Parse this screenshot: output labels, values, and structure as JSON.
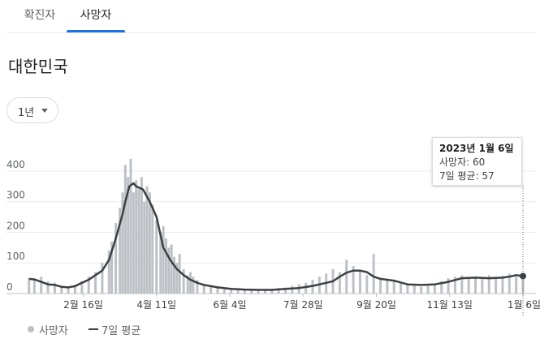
{
  "tabs": [
    {
      "label": "확진자",
      "selected": false
    },
    {
      "label": "사망자",
      "selected": true
    }
  ],
  "region": "대한민국",
  "period_select": {
    "label": "1년"
  },
  "tooltip": {
    "title": "2023년 1월 6일",
    "deaths": "사망자: 60",
    "avg": "7일 평균: 57"
  },
  "legend": {
    "bar_label": "사망자",
    "line_label": "7일 평균"
  },
  "colors": {
    "accent": "#1a73e8",
    "bars": "#bdc1c6",
    "line": "#3c4043"
  },
  "chart_data": {
    "type": "bar",
    "title": "",
    "xlabel": "",
    "ylabel": "",
    "ylim": [
      0,
      450
    ],
    "y_ticks": [
      "0",
      "100",
      "200",
      "300",
      "400"
    ],
    "x_ticks": [
      "2월 16일",
      "4월 11일",
      "6월 4일",
      "7월 28일",
      "9월 20일",
      "11월 13일",
      "1월 6일"
    ],
    "x_tick_days": [
      41,
      95,
      149,
      203,
      257,
      311,
      365
    ],
    "grid": true,
    "series": [
      {
        "name": "사망자",
        "type": "bar",
        "x_days": [
          1,
          5,
          10,
          15,
          20,
          25,
          30,
          35,
          40,
          45,
          50,
          55,
          60,
          62,
          65,
          68,
          70,
          72,
          74,
          76,
          78,
          80,
          82,
          84,
          86,
          88,
          90,
          92,
          95,
          98,
          100,
          102,
          104,
          106,
          108,
          110,
          112,
          115,
          118,
          120,
          122,
          125,
          130,
          135,
          140,
          145,
          150,
          155,
          160,
          165,
          170,
          175,
          180,
          185,
          190,
          195,
          200,
          205,
          210,
          215,
          220,
          225,
          230,
          235,
          240,
          245,
          250,
          255,
          260,
          265,
          270,
          275,
          280,
          285,
          290,
          295,
          300,
          305,
          310,
          315,
          320,
          325,
          330,
          335,
          340,
          345,
          350,
          355,
          360,
          365
        ],
        "values": [
          50,
          45,
          55,
          40,
          35,
          25,
          22,
          28,
          40,
          55,
          70,
          100,
          140,
          170,
          230,
          280,
          330,
          420,
          380,
          440,
          330,
          370,
          340,
          380,
          300,
          350,
          330,
          290,
          240,
          200,
          220,
          180,
          150,
          160,
          120,
          100,
          130,
          80,
          60,
          70,
          55,
          45,
          30,
          25,
          22,
          18,
          15,
          14,
          12,
          12,
          10,
          12,
          15,
          18,
          20,
          25,
          30,
          35,
          45,
          55,
          65,
          80,
          70,
          110,
          90,
          75,
          60,
          130,
          50,
          45,
          40,
          35,
          30,
          25,
          22,
          25,
          30,
          40,
          50,
          55,
          60,
          50,
          55,
          48,
          60,
          55,
          58,
          65,
          55,
          60
        ]
      },
      {
        "name": "7일 평균",
        "type": "line",
        "x_days": [
          1,
          5,
          10,
          15,
          20,
          25,
          30,
          35,
          40,
          45,
          50,
          55,
          60,
          65,
          70,
          72,
          75,
          78,
          80,
          85,
          90,
          95,
          100,
          105,
          110,
          115,
          120,
          125,
          130,
          140,
          150,
          160,
          170,
          180,
          190,
          200,
          210,
          220,
          225,
          230,
          235,
          240,
          245,
          250,
          255,
          260,
          265,
          270,
          280,
          290,
          300,
          310,
          320,
          330,
          340,
          350,
          355,
          360,
          365
        ],
        "values": [
          48,
          46,
          38,
          30,
          28,
          22,
          20,
          24,
          35,
          45,
          60,
          75,
          110,
          180,
          260,
          300,
          350,
          360,
          350,
          340,
          300,
          250,
          150,
          110,
          80,
          60,
          45,
          35,
          28,
          20,
          15,
          13,
          12,
          12,
          15,
          18,
          25,
          35,
          40,
          55,
          68,
          75,
          75,
          70,
          55,
          48,
          45,
          42,
          30,
          28,
          30,
          38,
          50,
          52,
          50,
          52,
          55,
          60,
          57
        ]
      }
    ],
    "highlight": {
      "label": "2023년 1월 6일",
      "deaths": 60,
      "avg": 57
    }
  }
}
